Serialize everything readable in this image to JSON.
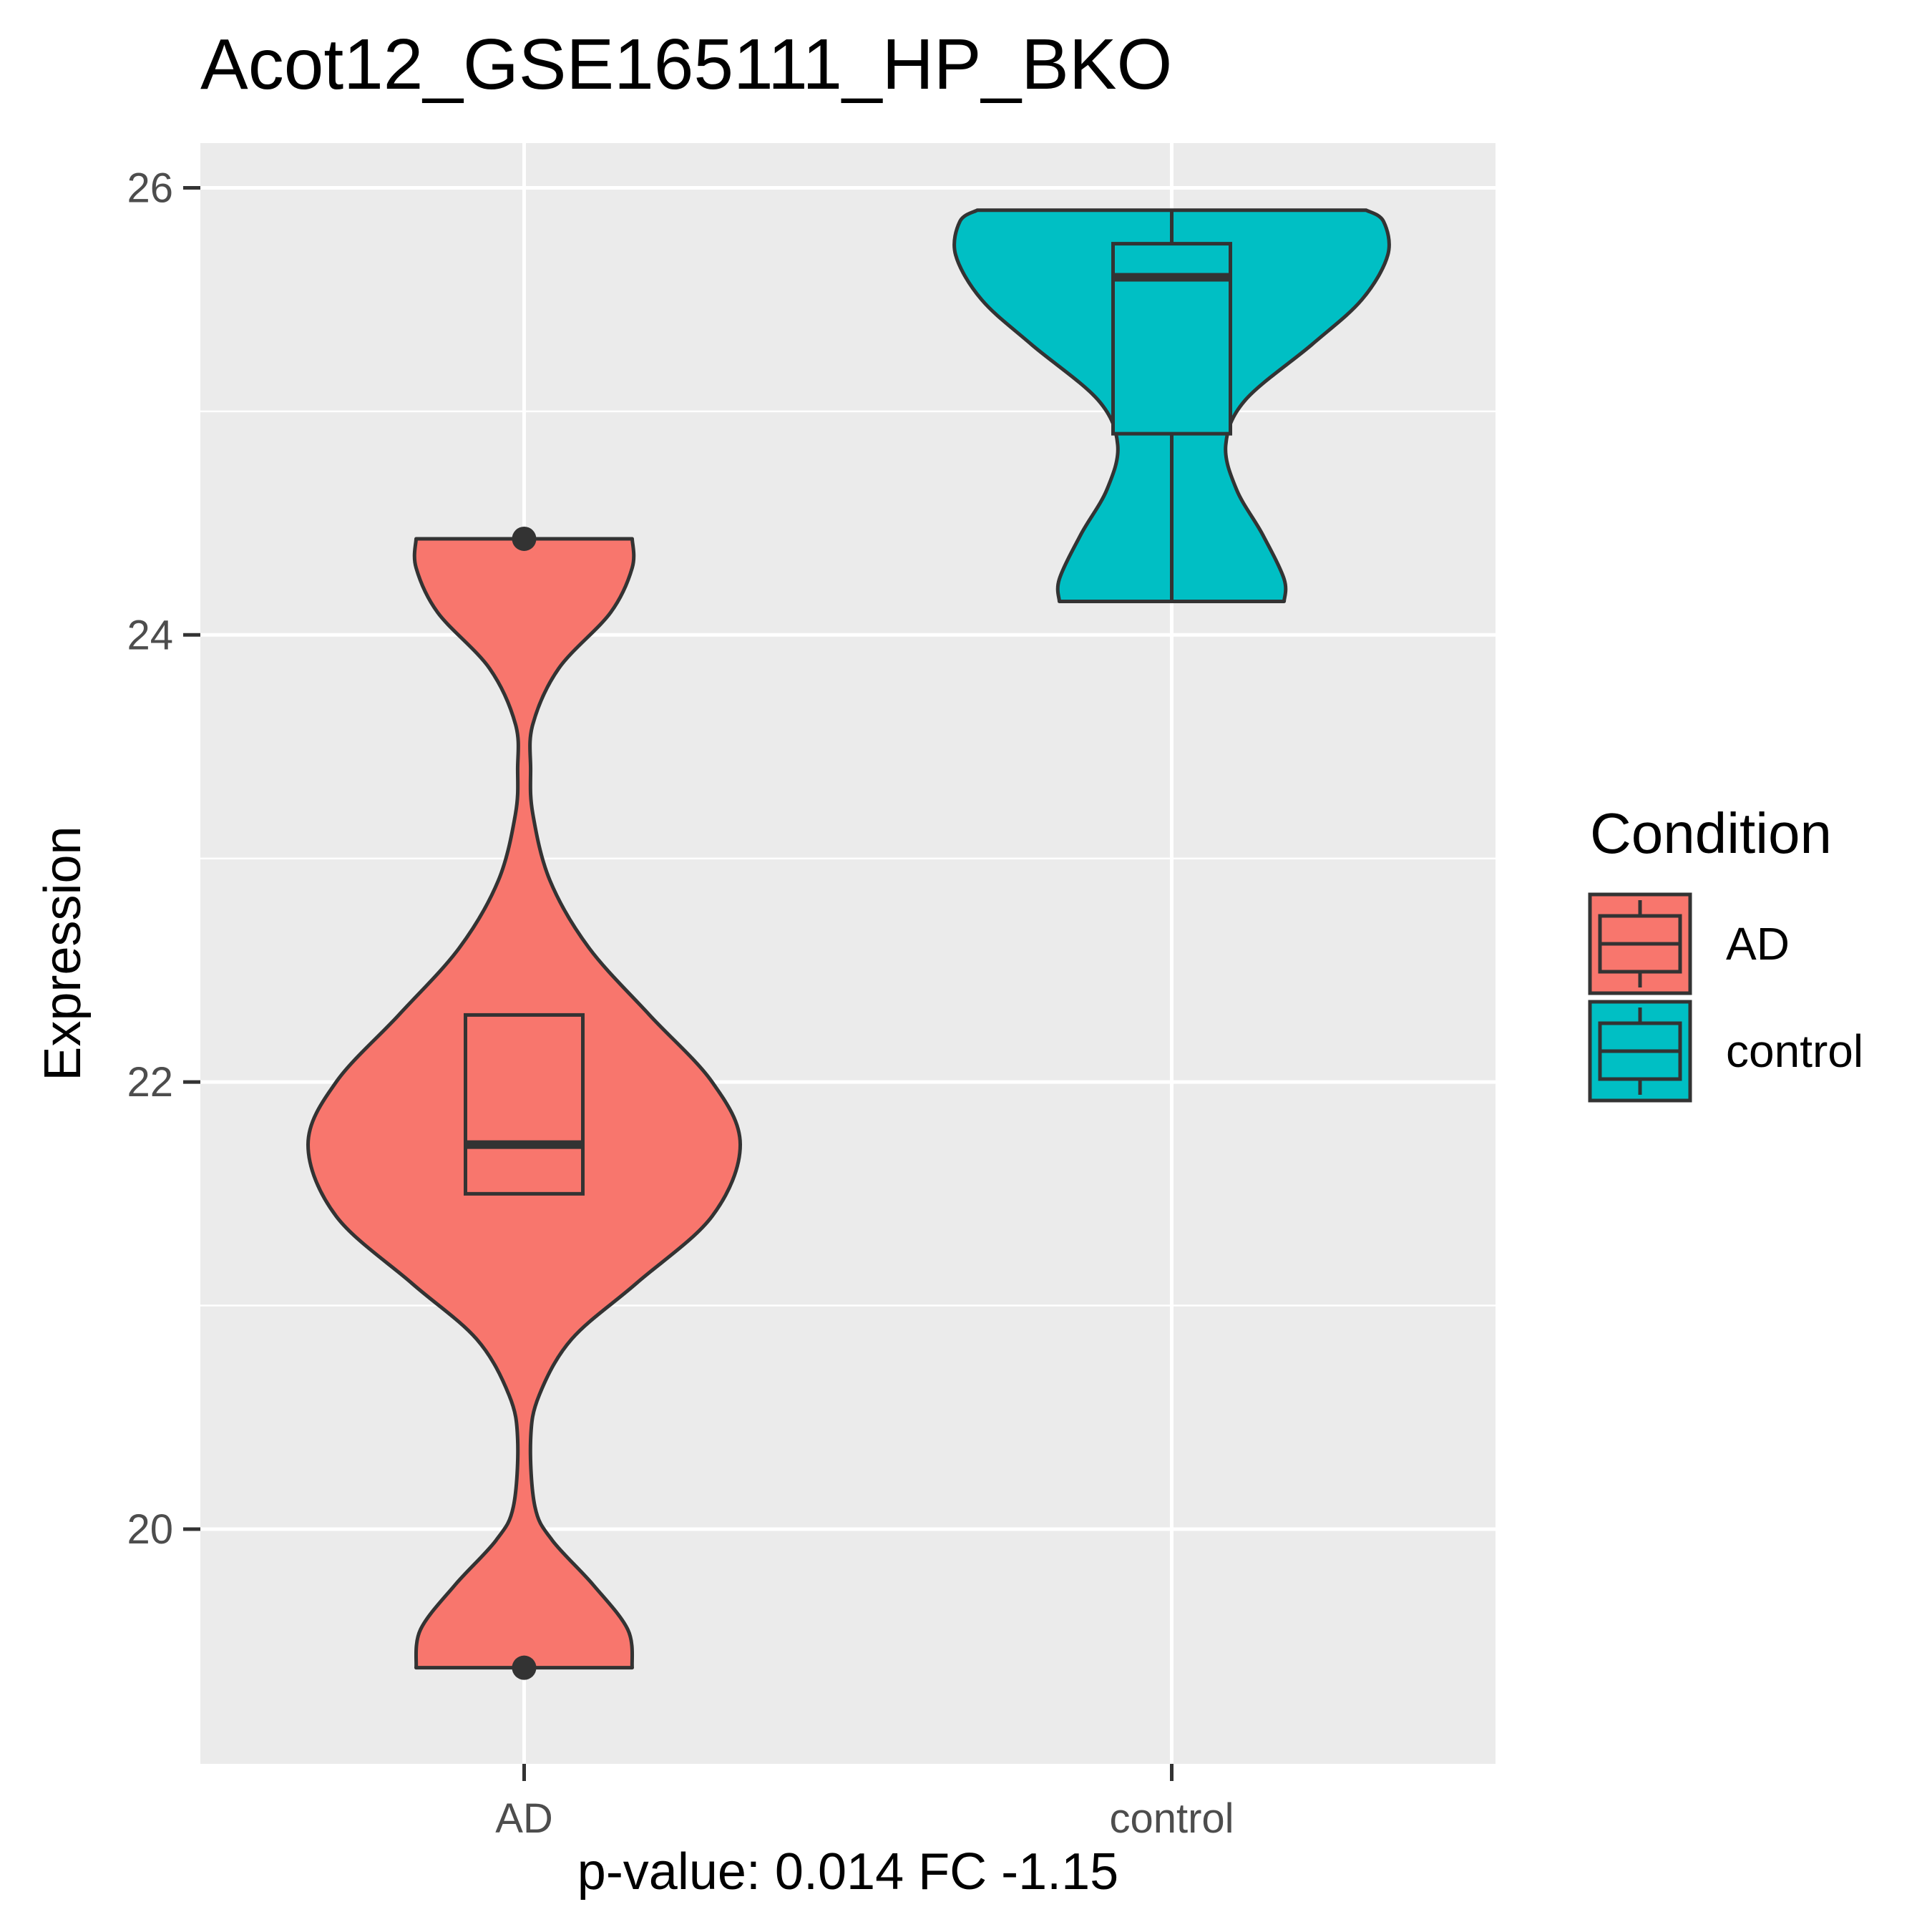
{
  "chart_data": {
    "type": "violin",
    "title": "Acot12_GSE165111_HP_BKO",
    "xlabel": "p-value: 0.014 FC -1.15",
    "ylabel": "Expression",
    "categories": [
      "AD",
      "control"
    ],
    "ylim": [
      18.95,
      26.2
    ],
    "yticks": [
      20,
      22,
      24,
      26
    ],
    "grid": true,
    "legend": {
      "title": "Condition",
      "placement": "right",
      "entries": [
        "AD",
        "control"
      ]
    },
    "colors": {
      "AD": "#F8766D",
      "control": "#00BFC4",
      "panel": "#EBEBEB",
      "outline": "#333333"
    },
    "groups": [
      {
        "name": "AD",
        "violin_min": 19.38,
        "violin_max": 24.43,
        "density_profile": [
          [
            19.38,
            0.5
          ],
          [
            19.55,
            0.48
          ],
          [
            19.75,
            0.32
          ],
          [
            19.95,
            0.13
          ],
          [
            20.1,
            0.05
          ],
          [
            20.4,
            0.03
          ],
          [
            20.6,
            0.07
          ],
          [
            20.85,
            0.22
          ],
          [
            21.1,
            0.52
          ],
          [
            21.4,
            0.87
          ],
          [
            21.72,
            1.0
          ],
          [
            22.0,
            0.87
          ],
          [
            22.3,
            0.58
          ],
          [
            22.6,
            0.3
          ],
          [
            22.9,
            0.12
          ],
          [
            23.2,
            0.04
          ],
          [
            23.4,
            0.03
          ],
          [
            23.6,
            0.04
          ],
          [
            23.85,
            0.16
          ],
          [
            24.1,
            0.4
          ],
          [
            24.3,
            0.5
          ],
          [
            24.43,
            0.5
          ]
        ],
        "box": {
          "q1": 21.5,
          "median": 21.72,
          "q3": 22.3,
          "whisker_low": 21.5,
          "whisker_high": 22.3
        },
        "outliers": [
          24.43,
          19.38
        ]
      },
      {
        "name": "control",
        "violin_min": 24.15,
        "violin_max": 25.9,
        "density_profile": [
          [
            24.15,
            0.52
          ],
          [
            24.25,
            0.52
          ],
          [
            24.45,
            0.42
          ],
          [
            24.65,
            0.3
          ],
          [
            24.85,
            0.25
          ],
          [
            25.05,
            0.34
          ],
          [
            25.3,
            0.65
          ],
          [
            25.5,
            0.88
          ],
          [
            25.7,
            1.0
          ],
          [
            25.85,
            0.98
          ],
          [
            25.9,
            0.9
          ]
        ],
        "box": {
          "q1": 24.9,
          "median": 25.6,
          "q3": 25.75,
          "whisker_low": 24.15,
          "whisker_high": 25.9
        },
        "outliers": []
      }
    ]
  }
}
